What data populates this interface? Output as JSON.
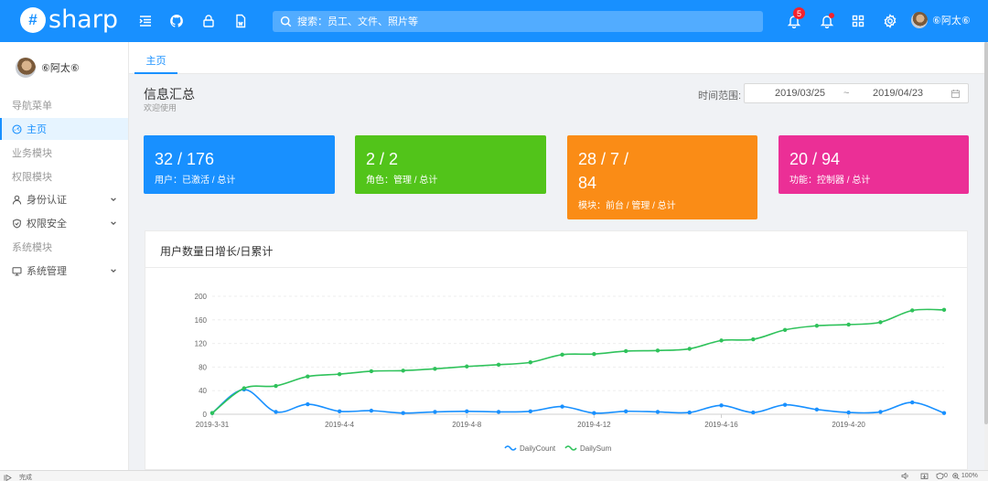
{
  "header": {
    "brand_mark": "#",
    "brand": "sharp",
    "search_placeholder": "搜索：员工、文件、照片等",
    "notification_count": "5",
    "username": "⑥阿太⑥",
    "icons": [
      "menu-icon",
      "github-icon",
      "lock-icon",
      "document-icon",
      "bell-icon",
      "alert-bell-icon",
      "apps-icon",
      "gear-icon"
    ]
  },
  "sidebar": {
    "username": "⑥阿太⑥",
    "items": [
      {
        "label": "导航菜单",
        "kind": "group"
      },
      {
        "label": "主页",
        "kind": "item",
        "icon": "dashboard-icon",
        "active": true
      },
      {
        "label": "业务模块",
        "kind": "group"
      },
      {
        "label": "权限模块",
        "kind": "group"
      },
      {
        "label": "身份认证",
        "kind": "submenu",
        "icon": "user-icon"
      },
      {
        "label": "权限安全",
        "kind": "submenu",
        "icon": "shield-icon"
      },
      {
        "label": "系统模块",
        "kind": "group"
      },
      {
        "label": "系统管理",
        "kind": "submenu",
        "icon": "desktop-icon"
      }
    ]
  },
  "tabs": [
    {
      "label": "主页"
    }
  ],
  "page": {
    "title": "信息汇总",
    "subtitle": "欢迎使用",
    "range_label": "时间范围:",
    "range_start": "2019/03/25",
    "range_sep": "~",
    "range_end": "2019/04/23"
  },
  "cards": [
    {
      "value": "32 / 176",
      "caption": "用户：已激活 / 总计",
      "color": "#1890ff"
    },
    {
      "value": "2 / 2",
      "caption": "角色：管理 / 总计",
      "color": "#52c41a"
    },
    {
      "value": "28 / 7 / 84",
      "caption": "模块：前台 / 管理 / 总计",
      "color": "#fa8c16"
    },
    {
      "value": "20 / 94",
      "caption": "功能：控制器 / 总计",
      "color": "#eb2f96"
    }
  ],
  "chart": {
    "title": "用户数量日增长/日累计"
  },
  "chart_data": {
    "type": "line",
    "title": "用户数量日增长/日累计",
    "xlabel": "",
    "ylabel": "",
    "ylim": [
      0,
      200
    ],
    "yticks": [
      0,
      40,
      80,
      120,
      160,
      200
    ],
    "x": [
      "2019-3-31",
      "2019-4-1",
      "2019-4-2",
      "2019-4-3",
      "2019-4-4",
      "2019-4-5",
      "2019-4-6",
      "2019-4-7",
      "2019-4-8",
      "2019-4-9",
      "2019-4-10",
      "2019-4-11",
      "2019-4-12",
      "2019-4-13",
      "2019-4-14",
      "2019-4-15",
      "2019-4-16",
      "2019-4-17",
      "2019-4-18",
      "2019-4-19",
      "2019-4-20",
      "2019-4-21",
      "2019-4-22",
      "2019-4-23"
    ],
    "xticks_shown": [
      "2019-3-31",
      "2019-4-4",
      "2019-4-8",
      "2019-4-12",
      "2019-4-16",
      "2019-4-20"
    ],
    "grid": true,
    "legend_position": "bottom-center",
    "series": [
      {
        "name": "DailyCount",
        "color": "#1890ff",
        "values": [
          2,
          42,
          4,
          17,
          5,
          6,
          2,
          4,
          5,
          4,
          5,
          13,
          2,
          5,
          4,
          3,
          15,
          3,
          16,
          8,
          3,
          4,
          20,
          2
        ]
      },
      {
        "name": "DailySum",
        "color": "#2fc25b",
        "values": [
          2,
          44,
          48,
          64,
          68,
          73,
          74,
          77,
          81,
          84,
          88,
          101,
          102,
          107,
          108,
          111,
          125,
          127,
          143,
          150,
          152,
          156,
          176,
          177
        ]
      }
    ]
  },
  "statusbar": {
    "left": "完成",
    "zoom": "100%",
    "count": "0"
  }
}
